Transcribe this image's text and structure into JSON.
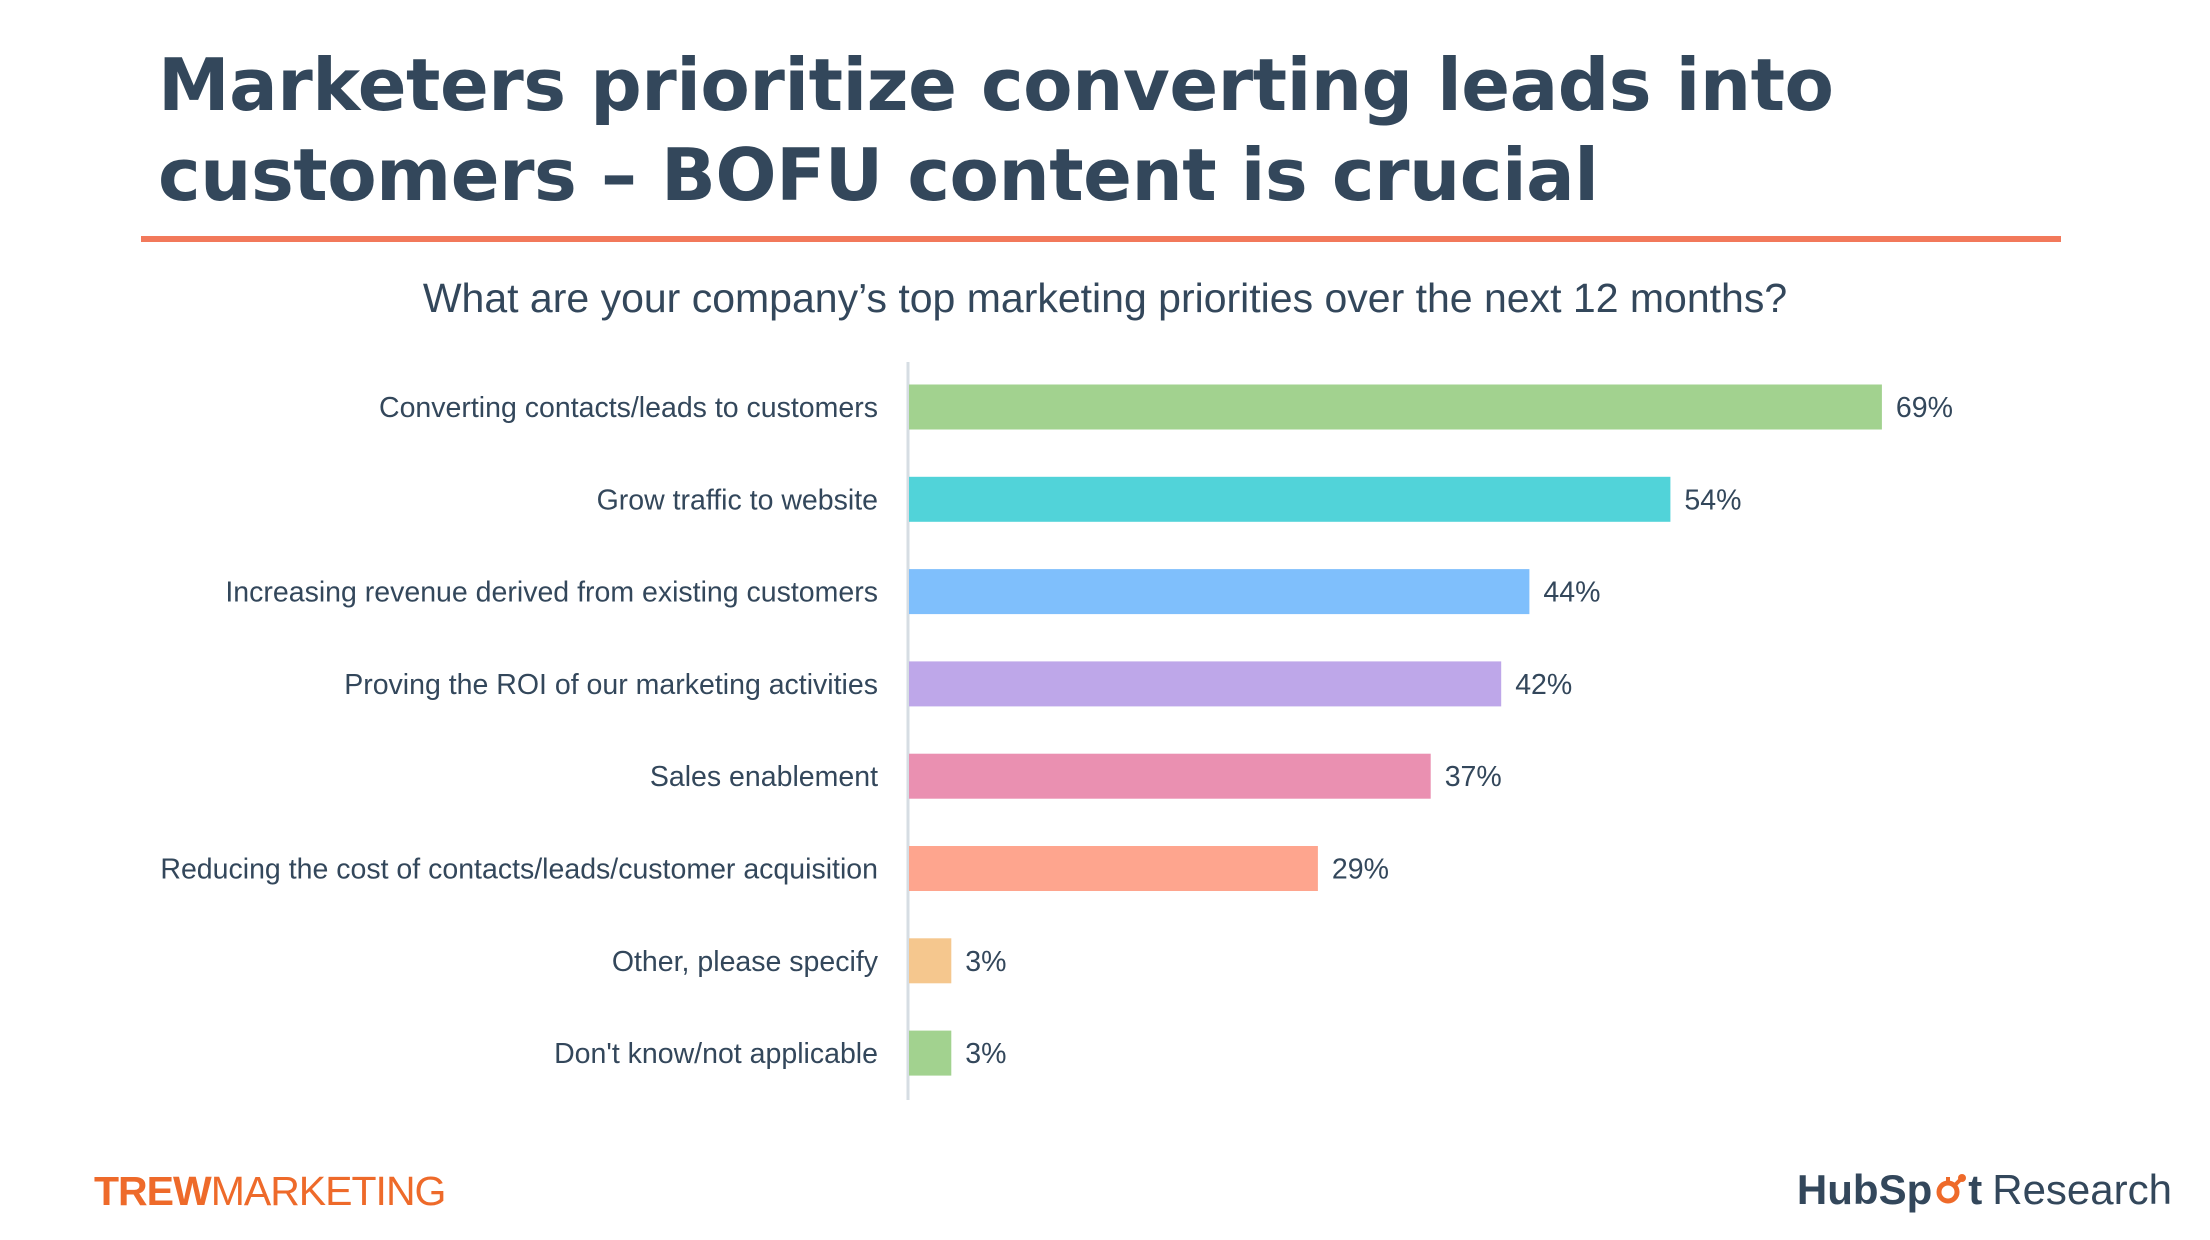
{
  "slide": {
    "title": "Marketers prioritize converting leads into customers – BOFU content is crucial",
    "accent_color": "#f2795b"
  },
  "footer": {
    "left_brand_bold": "TREW",
    "left_brand": "MARKETING",
    "right_brand_pre": "HubSp",
    "right_brand_post": "t",
    "right_brand_suffix": "Research",
    "brand_orange": "#ee6a2a"
  },
  "chart_data": {
    "type": "bar",
    "orientation": "horizontal",
    "title": "What are your company’s top marketing priorities over the next 12 months?",
    "categories": [
      "Converting contacts/leads to customers",
      "Grow traffic to website",
      "Increasing revenue derived from existing customers",
      "Proving the ROI of our marketing activities",
      "Sales enablement",
      "Reducing the cost of contacts/leads/customer acquisition",
      "Other, please specify",
      "Don't know/not applicable"
    ],
    "values": [
      69,
      54,
      44,
      42,
      37,
      29,
      3,
      3
    ],
    "value_labels": [
      "69%",
      "54%",
      "44%",
      "42%",
      "37%",
      "29%",
      "3%",
      "3%"
    ],
    "colors": [
      "#a2d28f",
      "#51d3d9",
      "#7fbffc",
      "#bea7e9",
      "#ea90b1",
      "#fea58e",
      "#f5c78e",
      "#a2d28f"
    ],
    "unit": "%",
    "grid": false,
    "legend": "none"
  }
}
